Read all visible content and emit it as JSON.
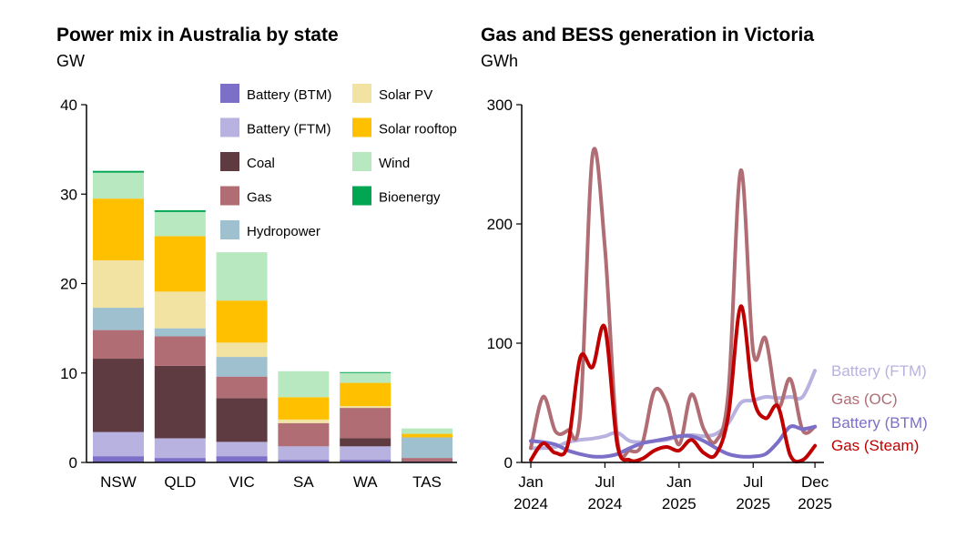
{
  "chart_data": [
    {
      "type": "bar",
      "stacked": true,
      "title": "Power mix in Australia by state",
      "ylabel": "GW",
      "ylim": [
        0,
        40
      ],
      "yticks": [
        0,
        10,
        20,
        30,
        40
      ],
      "categories": [
        "NSW",
        "QLD",
        "VIC",
        "SA",
        "WA",
        "TAS"
      ],
      "legend": "top-right",
      "legend_columns": [
        [
          "Battery (BTM)",
          "Battery (FTM)",
          "Coal",
          "Gas",
          "Hydropower"
        ],
        [
          "Solar PV",
          "Solar rooftop",
          "Wind",
          "Bioenergy"
        ]
      ],
      "series": [
        {
          "name": "Battery (BTM)",
          "color": "#7b6fc7",
          "values": [
            0.7,
            0.5,
            0.7,
            0.3,
            0.3,
            0.1
          ]
        },
        {
          "name": "Battery (FTM)",
          "color": "#b8b2e0",
          "values": [
            2.7,
            2.2,
            1.6,
            1.5,
            1.5,
            0.0
          ]
        },
        {
          "name": "Coal",
          "color": "#5e3a41",
          "values": [
            8.2,
            8.1,
            4.9,
            0.0,
            0.9,
            0.0
          ]
        },
        {
          "name": "Gas",
          "color": "#b06d74",
          "values": [
            3.2,
            3.3,
            2.4,
            2.6,
            3.4,
            0.4
          ]
        },
        {
          "name": "Hydropower",
          "color": "#9fc1cf",
          "values": [
            2.5,
            0.9,
            2.2,
            0.0,
            0.0,
            2.3
          ]
        },
        {
          "name": "Solar PV",
          "color": "#f2e3a2",
          "values": [
            5.3,
            4.1,
            1.6,
            0.4,
            0.2,
            0.0
          ]
        },
        {
          "name": "Solar rooftop",
          "color": "#ffc000",
          "values": [
            6.9,
            6.2,
            4.7,
            2.5,
            2.6,
            0.4
          ]
        },
        {
          "name": "Wind",
          "color": "#b7e8bf",
          "values": [
            2.9,
            2.7,
            5.4,
            2.9,
            1.1,
            0.6
          ]
        },
        {
          "name": "Bioenergy",
          "color": "#00a651",
          "values": [
            0.2,
            0.2,
            0.0,
            0.0,
            0.1,
            0.0
          ]
        }
      ]
    },
    {
      "type": "line",
      "title": "Gas and BESS generation in Victoria",
      "ylabel": "GWh",
      "ylim": [
        0,
        300
      ],
      "yticks": [
        0,
        100,
        200,
        300
      ],
      "x": [
        "2024-01",
        "2024-02",
        "2024-03",
        "2024-04",
        "2024-05",
        "2024-06",
        "2024-07",
        "2024-08",
        "2024-09",
        "2024-10",
        "2024-11",
        "2024-12",
        "2025-01",
        "2025-02",
        "2025-03",
        "2025-04",
        "2025-05",
        "2025-06",
        "2025-07",
        "2025-08",
        "2025-09",
        "2025-10",
        "2025-11",
        "2025-12"
      ],
      "xticks": [
        {
          "x": "2024-01",
          "label": "Jan",
          "year": "2024"
        },
        {
          "x": "2024-07",
          "label": "Jul",
          "year": "2024"
        },
        {
          "x": "2025-01",
          "label": "Jan",
          "year": "2025"
        },
        {
          "x": "2025-07",
          "label": "Jul",
          "year": "2025"
        },
        {
          "x": "2025-12",
          "label": "Dec",
          "year": "2025"
        }
      ],
      "labels_at_line_end": true,
      "series": [
        {
          "name": "Battery (FTM)",
          "color": "#b8b2e0",
          "values": [
            12,
            12,
            13,
            17,
            19,
            20,
            22,
            25,
            18,
            17,
            18,
            19,
            22,
            23,
            22,
            24,
            33,
            50,
            52,
            55,
            54,
            55,
            55,
            77
          ]
        },
        {
          "name": "Gas (OC)",
          "color": "#b06d74",
          "values": [
            12,
            55,
            26,
            27,
            40,
            258,
            180,
            20,
            10,
            15,
            60,
            50,
            15,
            57,
            28,
            18,
            60,
            245,
            93,
            104,
            47,
            70,
            27,
            30
          ]
        },
        {
          "name": "Battery (BTM)",
          "color": "#7b6fc7",
          "values": [
            18,
            17,
            15,
            10,
            7,
            5,
            5,
            7,
            12,
            16,
            18,
            20,
            22,
            22,
            18,
            12,
            7,
            5,
            5,
            7,
            17,
            30,
            28,
            30
          ]
        },
        {
          "name": "Gas (Steam)",
          "color": "#c00000",
          "values": [
            2,
            16,
            8,
            15,
            88,
            80,
            113,
            15,
            2,
            3,
            10,
            13,
            10,
            19,
            8,
            7,
            40,
            131,
            55,
            37,
            47,
            6,
            2,
            14
          ]
        }
      ]
    }
  ]
}
